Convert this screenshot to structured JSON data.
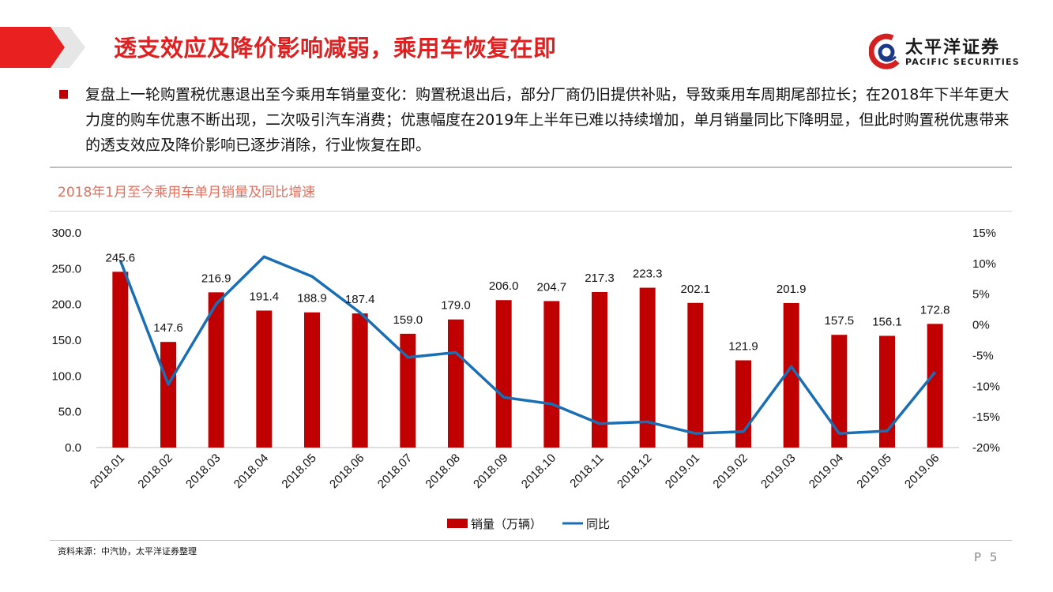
{
  "header": {
    "title": "透支效应及降价影响减弱，乘用车恢复在即"
  },
  "logo": {
    "name_cn": "太平洋证券",
    "name_en": "PACIFIC SECURITIES"
  },
  "summary": {
    "text": "复盘上一轮购置税优惠退出至今乘用车销量变化：购置税退出后，部分厂商仍旧提供补贴，导致乘用车周期尾部拉长；在2018年下半年更大力度的购车优惠不断出现，二次吸引汽车消费；优惠幅度在2019年上半年已难以持续增加，单月销量同比下降明显，但此时购置税优惠带来的透支效应及降价影响已逐步消除，行业恢复在即。"
  },
  "chart_data": {
    "type": "bar",
    "title": "2018年1月至今乘用车单月销量及同比增速",
    "categories": [
      "2018.01",
      "2018.02",
      "2018.03",
      "2018.04",
      "2018.05",
      "2018.06",
      "2018.07",
      "2018.08",
      "2018.09",
      "2018.10",
      "2018.11",
      "2018.12",
      "2019.01",
      "2019.02",
      "2019.03",
      "2019.04",
      "2019.05",
      "2019.06"
    ],
    "series": [
      {
        "name": "销量（万辆）",
        "type": "bar",
        "axis": "left",
        "color": "#c00000",
        "values": [
          245.6,
          147.6,
          216.9,
          191.4,
          188.9,
          187.4,
          159.0,
          179.0,
          206.0,
          204.7,
          217.3,
          223.3,
          202.1,
          121.9,
          201.9,
          157.5,
          156.1,
          172.8
        ],
        "labels": [
          "245.6",
          "147.6",
          "216.9",
          "191.4",
          "188.9",
          "187.4",
          "159.0",
          "179.0",
          "206.0",
          "204.7",
          "217.3",
          "223.3",
          "202.1",
          "121.9",
          "201.9",
          "157.5",
          "156.1",
          "172.8"
        ]
      },
      {
        "name": "同比",
        "type": "line",
        "axis": "right",
        "color": "#1a6fb4",
        "values": [
          10.5,
          -9.7,
          3.4,
          11.1,
          7.9,
          2.0,
          -5.3,
          -4.5,
          -11.8,
          -12.9,
          -16.1,
          -15.8,
          -17.7,
          -17.4,
          -6.8,
          -17.7,
          -17.3,
          -7.7
        ]
      }
    ],
    "y_left": {
      "ylim": [
        0,
        300
      ],
      "ticks": [
        "0.0",
        "50.0",
        "100.0",
        "150.0",
        "200.0",
        "250.0",
        "300.0"
      ]
    },
    "y_right": {
      "ylim": [
        -20,
        15
      ],
      "ticks": [
        "-20%",
        "-15%",
        "-10%",
        "-5%",
        "0%",
        "5%",
        "10%",
        "15%"
      ]
    },
    "grid": false,
    "legend": "bottom-center"
  },
  "footer": {
    "source": "资料来源：中汽协，太平洋证券整理",
    "page": "P 5"
  }
}
